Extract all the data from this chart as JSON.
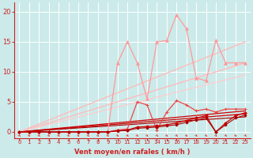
{
  "xlabel": "Vent moyen/en rafales ( km/h )",
  "xlim": [
    -0.5,
    23.5
  ],
  "ylim": [
    -1.0,
    21.5
  ],
  "yticks": [
    0,
    5,
    10,
    15,
    20
  ],
  "xticks": [
    0,
    1,
    2,
    3,
    4,
    5,
    6,
    7,
    8,
    9,
    10,
    11,
    12,
    13,
    14,
    15,
    16,
    17,
    18,
    19,
    20,
    21,
    22,
    23
  ],
  "bg_color": "#cceaea",
  "grid_color": "#ffffff",
  "series": [
    {
      "x": [
        0,
        1,
        2,
        3,
        4,
        5,
        6,
        7,
        8,
        9,
        10,
        11,
        12,
        13,
        14,
        15,
        16,
        17,
        18,
        19,
        20,
        21,
        22,
        23
      ],
      "y": [
        0,
        0,
        0,
        0,
        0,
        0,
        0,
        0,
        0,
        0,
        11.5,
        15.0,
        11.5,
        5.5,
        15.0,
        15.2,
        19.5,
        17.2,
        9.0,
        8.5,
        15.2,
        11.5,
        11.5,
        11.5
      ],
      "color": "#ff9999",
      "lw": 0.9,
      "marker": "^",
      "ms": 2.5,
      "zorder": 4
    },
    {
      "x": [
        0,
        23
      ],
      "y": [
        0,
        15.0
      ],
      "color": "#ffbbbb",
      "lw": 1.0,
      "marker": null,
      "ms": 0,
      "zorder": 2
    },
    {
      "x": [
        0,
        23
      ],
      "y": [
        0,
        11.5
      ],
      "color": "#ffbbbb",
      "lw": 1.0,
      "marker": null,
      "ms": 0,
      "zorder": 2
    },
    {
      "x": [
        0,
        23
      ],
      "y": [
        0,
        9.5
      ],
      "color": "#ffcccc",
      "lw": 0.9,
      "marker": null,
      "ms": 0,
      "zorder": 2
    },
    {
      "x": [
        0,
        1,
        2,
        3,
        4,
        5,
        6,
        7,
        8,
        9,
        10,
        11,
        12,
        13,
        14,
        15,
        16,
        17,
        18,
        19,
        20,
        21,
        22,
        23
      ],
      "y": [
        0,
        0,
        0,
        0,
        0,
        0,
        0,
        0,
        0,
        0,
        0.3,
        0.5,
        5.0,
        4.5,
        0.3,
        3.3,
        5.2,
        4.5,
        3.5,
        3.8,
        3.3,
        3.8,
        3.8,
        3.8
      ],
      "color": "#ee4444",
      "lw": 0.9,
      "marker": "+",
      "ms": 3.0,
      "zorder": 5
    },
    {
      "x": [
        0,
        1,
        2,
        3,
        4,
        5,
        6,
        7,
        8,
        9,
        10,
        11,
        12,
        13,
        14,
        15,
        16,
        17,
        18,
        19,
        20,
        21,
        22,
        23
      ],
      "y": [
        0,
        0,
        0,
        0,
        0,
        0,
        0,
        0,
        0,
        0,
        0.2,
        0.3,
        0.8,
        0.9,
        1.0,
        1.2,
        1.5,
        1.9,
        2.3,
        2.7,
        0.0,
        1.5,
        2.7,
        3.2
      ],
      "color": "#cc0000",
      "lw": 0.9,
      "marker": "D",
      "ms": 1.8,
      "zorder": 6
    },
    {
      "x": [
        0,
        1,
        2,
        3,
        4,
        5,
        6,
        7,
        8,
        9,
        10,
        11,
        12,
        13,
        14,
        15,
        16,
        17,
        18,
        19,
        20,
        21,
        22,
        23
      ],
      "y": [
        0,
        0,
        0,
        0,
        0,
        0,
        0,
        0,
        0,
        0,
        0.15,
        0.25,
        0.6,
        0.7,
        0.8,
        1.0,
        1.2,
        1.6,
        2.0,
        2.3,
        0.0,
        1.2,
        2.3,
        2.8
      ],
      "color": "#aa0000",
      "lw": 0.8,
      "marker": "D",
      "ms": 1.5,
      "zorder": 6
    },
    {
      "x": [
        0,
        23
      ],
      "y": [
        0,
        3.5
      ],
      "color": "#cc0000",
      "lw": 0.9,
      "marker": null,
      "ms": 0,
      "zorder": 3
    },
    {
      "x": [
        0,
        23
      ],
      "y": [
        0,
        3.0
      ],
      "color": "#cc0000",
      "lw": 0.9,
      "marker": null,
      "ms": 0,
      "zorder": 3
    },
    {
      "x": [
        0,
        23
      ],
      "y": [
        0,
        2.5
      ],
      "color": "#aa0000",
      "lw": 0.8,
      "marker": null,
      "ms": 0,
      "zorder": 3
    }
  ],
  "arrow_color": "#cc2222",
  "axis_color": "#cc2222",
  "tick_color": "#cc2222",
  "label_color": "#cc2222",
  "xlabel_fontsize": 6.0,
  "xlabel_fontweight": "bold",
  "ytick_fontsize": 6.0,
  "xtick_fontsize": 5.0
}
